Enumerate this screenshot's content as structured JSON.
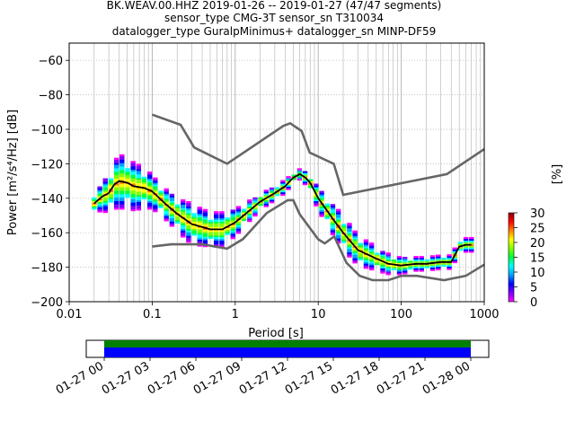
{
  "title_lines": [
    "BK.WEAV.00.HHZ   2019-01-26 -- 2019-01-27  (47/47 segments)",
    "sensor_type CMG-3T sensor_sn T310034",
    "datalogger_type GuralpMinimus+ datalogger_sn MINP-DF59"
  ],
  "colorbar": {
    "label": "[%]",
    "ticks": [
      "30",
      "25",
      "20",
      "15",
      "10",
      "5",
      "0"
    ],
    "colors": [
      "#ff00ff",
      "#8000ff",
      "#0000ff",
      "#00a0ff",
      "#00ffff",
      "#00ff40",
      "#80ff00",
      "#ffff00",
      "#ff8000",
      "#ff0000",
      "#8b0000"
    ]
  },
  "timeline": {
    "tick_labels": [
      "01-27 00",
      "01-27 03",
      "01-27 06",
      "01-27 09",
      "01-27 12",
      "01-27 15",
      "01-27 18",
      "01-27 21",
      "01-28 00"
    ],
    "bar_colors": {
      "top": "#008000",
      "bottom": "#0000ff"
    }
  },
  "chart_data": {
    "type": "heatmap",
    "title": "BK.WEAV.00.HHZ   2019-01-26 -- 2019-01-27  (47/47 segments)",
    "xlabel": "Period [s]",
    "ylabel": "Power [m²/s⁴/Hz] [dB]",
    "xscale": "log",
    "xlim": [
      0.01,
      1000
    ],
    "ylim": [
      -200,
      -50
    ],
    "grid": true,
    "x_tick_labels": [
      "0.01",
      "0.1",
      "1",
      "10",
      "100",
      "1000"
    ],
    "y_ticks": [
      -60,
      -80,
      -100,
      -120,
      -140,
      -160,
      -180,
      -200
    ],
    "y_tick_labels": [
      "−60",
      "−80",
      "−100",
      "−120",
      "−140",
      "−160",
      "−180",
      "−200"
    ],
    "series": [
      {
        "role": "high-noise-model",
        "color": "#666666",
        "x": [
          0.1,
          0.22,
          0.32,
          0.8,
          3.8,
          4.6,
          6.3,
          7.9,
          15.4,
          20,
          354.8,
          1000
        ],
        "y": [
          -91.5,
          -97.4,
          -110.5,
          -120,
          -98,
          -96.5,
          -101,
          -113.5,
          -120,
          -138,
          -126,
          -111.5
        ]
      },
      {
        "role": "low-noise-model",
        "color": "#666666",
        "x": [
          0.1,
          0.17,
          0.4,
          0.8,
          1.24,
          2.4,
          4.3,
          5,
          6,
          10,
          12,
          15.6,
          21.9,
          31.6,
          45,
          70,
          101,
          154,
          328,
          600,
          1000
        ],
        "y": [
          -168,
          -166.7,
          -166.7,
          -169.2,
          -163.7,
          -148.6,
          -141.1,
          -141.1,
          -149.4,
          -163.8,
          -166.2,
          -162.1,
          -177.5,
          -185,
          -187.5,
          -187.5,
          -185,
          -185,
          -187.5,
          -185,
          -178.5
        ]
      },
      {
        "role": "mode",
        "color": "#000000",
        "x": [
          0.02,
          0.025,
          0.03,
          0.035,
          0.04,
          0.05,
          0.06,
          0.08,
          0.1,
          0.15,
          0.2,
          0.3,
          0.5,
          0.7,
          1,
          1.5,
          2,
          3,
          4,
          5,
          6,
          7,
          8,
          10,
          15,
          20,
          30,
          50,
          70,
          100,
          150,
          200,
          300,
          400,
          500,
          600,
          700
        ],
        "y": [
          -143,
          -139,
          -137,
          -132,
          -130,
          -131,
          -133,
          -134,
          -136,
          -144,
          -149,
          -155,
          -158,
          -158,
          -154,
          -147,
          -142,
          -137,
          -133,
          -128,
          -126,
          -128,
          -131,
          -140,
          -152,
          -160,
          -170,
          -175,
          -178,
          -179,
          -178,
          -178,
          -177,
          -177,
          -168,
          -167,
          -167
        ]
      },
      {
        "role": "pdf-percent",
        "x": [
          0.02,
          0.025,
          0.03,
          0.035,
          0.04,
          0.05,
          0.06,
          0.08,
          0.1,
          0.15,
          0.2,
          0.3,
          0.5,
          0.7,
          1,
          1.5,
          2,
          3,
          4,
          5,
          6,
          7,
          8,
          10,
          15,
          20,
          30,
          50,
          70,
          100,
          150,
          200,
          300,
          400,
          500,
          600,
          700
        ],
        "y_center": [
          -143,
          -139,
          -137,
          -132,
          -130,
          -131,
          -133,
          -134,
          -136,
          -144,
          -149,
          -155,
          -158,
          -158,
          -154,
          -147,
          -142,
          -137,
          -133,
          -128,
          -126,
          -128,
          -131,
          -140,
          -152,
          -160,
          -170,
          -175,
          -178,
          -179,
          -178,
          -178,
          -177,
          -177,
          -168,
          -167,
          -167
        ],
        "spread_db": [
          6,
          8,
          12,
          14,
          16,
          15,
          14,
          12,
          10,
          9,
          10,
          12,
          10,
          10,
          8,
          6,
          5,
          4,
          4,
          3,
          3,
          4,
          5,
          7,
          9,
          10,
          9,
          7,
          6,
          5,
          4,
          4,
          4,
          4,
          4,
          4,
          4
        ]
      }
    ]
  }
}
